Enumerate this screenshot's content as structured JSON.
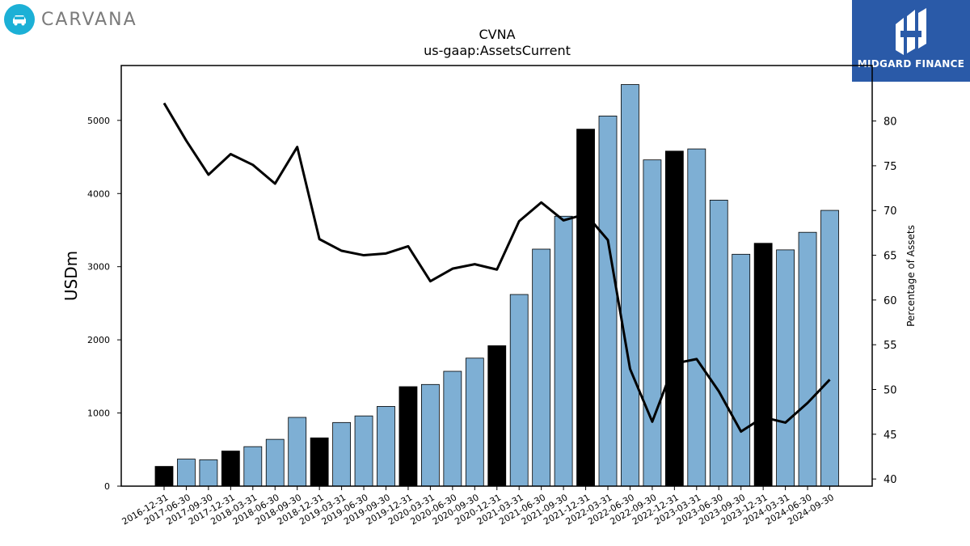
{
  "logo": {
    "text": "CARVANA",
    "icon": "car-icon"
  },
  "badge": {
    "text": "MIDGARD FINANCE",
    "icon": "midgard-logo-icon"
  },
  "colors": {
    "highlight": "#000000",
    "bar": "#7eafd4",
    "line": "#000000",
    "logo_circle": "#1cb0d6",
    "badge_bg": "#2a5aa8"
  },
  "chart_data": {
    "type": "bar",
    "title": "CVNA",
    "subtitle": "us-gaap:AssetsCurrent",
    "ylabel": "USDm",
    "y2label": "Percentage of Assets",
    "ylim": [
      0,
      5750
    ],
    "y2lim": [
      39.2,
      86.2
    ],
    "yticks": [
      0,
      1000,
      2000,
      3000,
      4000,
      5000
    ],
    "y2ticks": [
      40,
      45,
      50,
      55,
      60,
      65,
      70,
      75,
      80
    ],
    "categories": [
      "2016-12-31",
      "2017-06-30",
      "2017-09-30",
      "2017-12-31",
      "2018-03-31",
      "2018-06-30",
      "2018-09-30",
      "2018-12-31",
      "2019-03-31",
      "2019-06-30",
      "2019-09-30",
      "2019-12-31",
      "2020-03-31",
      "2020-06-30",
      "2020-09-30",
      "2020-12-31",
      "2021-03-31",
      "2021-06-30",
      "2021-09-30",
      "2021-12-31",
      "2022-03-31",
      "2022-06-30",
      "2022-09-30",
      "2022-12-31",
      "2023-03-31",
      "2023-06-30",
      "2023-09-30",
      "2023-12-31",
      "2024-03-31",
      "2024-06-30",
      "2024-09-30"
    ],
    "series": [
      {
        "values": [
          270,
          370,
          360,
          480,
          540,
          640,
          940,
          660,
          870,
          960,
          1090,
          1360,
          1390,
          1570,
          1750,
          1920,
          2620,
          3240,
          3690,
          4880,
          5060,
          5490,
          4460,
          4580,
          4610,
          3910,
          3170,
          3320,
          3230,
          3470,
          3770
        ]
      },
      {
        "values": [
          82,
          77.8,
          74,
          76.3,
          75.1,
          73,
          77.1,
          66.8,
          65.5,
          65,
          65.2,
          66,
          62.1,
          63.5,
          64,
          63.4,
          68.8,
          70.9,
          68.9,
          69.6,
          66.7,
          52.3,
          46.4,
          52.9,
          53.4,
          49.8,
          45.3,
          46.9,
          46.3,
          48.5,
          51.1
        ]
      }
    ],
    "year_end": [
      true,
      false,
      false,
      true,
      false,
      false,
      false,
      true,
      false,
      false,
      false,
      true,
      false,
      false,
      false,
      true,
      false,
      false,
      false,
      true,
      false,
      false,
      false,
      true,
      false,
      false,
      false,
      true,
      false,
      false,
      false
    ]
  }
}
